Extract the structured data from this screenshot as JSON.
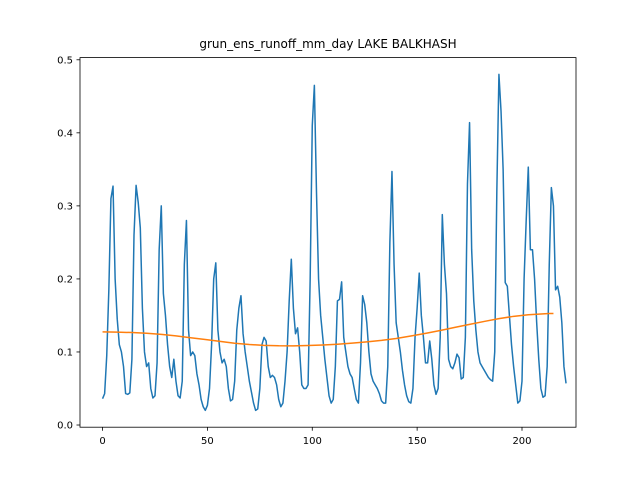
{
  "chart_data": {
    "type": "line",
    "title": "grun_ens_runoff_mm_day LAKE BALKHASH",
    "xlabel": "",
    "ylabel": "",
    "xlim": [
      -10.75,
      225.75
    ],
    "ylim": [
      -0.003,
      0.503
    ],
    "xticks": [
      0,
      50,
      100,
      150,
      200
    ],
    "xtick_labels": [
      "0",
      "50",
      "100",
      "150",
      "200"
    ],
    "yticks": [
      0.0,
      0.1,
      0.2,
      0.3,
      0.4,
      0.5
    ],
    "ytick_labels": [
      "0.0",
      "0.1",
      "0.2",
      "0.3",
      "0.4",
      "0.5"
    ],
    "grid": false,
    "colors": {
      "series1": "#1f77b4",
      "series2": "#ff7f0e"
    },
    "series": [
      {
        "values": [
          0.036,
          0.043,
          0.095,
          0.185,
          0.31,
          0.327,
          0.2,
          0.145,
          0.11,
          0.1,
          0.08,
          0.043,
          0.042,
          0.044,
          0.09,
          0.26,
          0.328,
          0.305,
          0.27,
          0.16,
          0.1,
          0.08,
          0.085,
          0.05,
          0.037,
          0.04,
          0.085,
          0.24,
          0.3,
          0.18,
          0.15,
          0.11,
          0.08,
          0.065,
          0.09,
          0.06,
          0.04,
          0.037,
          0.06,
          0.22,
          0.28,
          0.13,
          0.095,
          0.1,
          0.095,
          0.07,
          0.055,
          0.035,
          0.025,
          0.02,
          0.027,
          0.05,
          0.11,
          0.2,
          0.222,
          0.13,
          0.1,
          0.085,
          0.09,
          0.08,
          0.05,
          0.033,
          0.035,
          0.06,
          0.13,
          0.16,
          0.177,
          0.125,
          0.1,
          0.08,
          0.06,
          0.045,
          0.03,
          0.02,
          0.022,
          0.05,
          0.11,
          0.12,
          0.115,
          0.08,
          0.065,
          0.068,
          0.065,
          0.055,
          0.035,
          0.025,
          0.03,
          0.06,
          0.1,
          0.17,
          0.227,
          0.16,
          0.125,
          0.133,
          0.1,
          0.055,
          0.05,
          0.05,
          0.055,
          0.2,
          0.41,
          0.465,
          0.32,
          0.2,
          0.15,
          0.12,
          0.09,
          0.065,
          0.04,
          0.03,
          0.035,
          0.08,
          0.17,
          0.172,
          0.196,
          0.12,
          0.1,
          0.08,
          0.07,
          0.065,
          0.05,
          0.035,
          0.03,
          0.085,
          0.177,
          0.165,
          0.14,
          0.1,
          0.07,
          0.06,
          0.055,
          0.05,
          0.043,
          0.033,
          0.03,
          0.03,
          0.08,
          0.25,
          0.347,
          0.22,
          0.14,
          0.12,
          0.1,
          0.075,
          0.055,
          0.04,
          0.032,
          0.03,
          0.05,
          0.12,
          0.16,
          0.208,
          0.15,
          0.12,
          0.085,
          0.085,
          0.115,
          0.09,
          0.055,
          0.042,
          0.05,
          0.12,
          0.288,
          0.22,
          0.18,
          0.09,
          0.08,
          0.077,
          0.085,
          0.097,
          0.092,
          0.063,
          0.065,
          0.12,
          0.33,
          0.414,
          0.24,
          0.17,
          0.13,
          0.1,
          0.085,
          0.08,
          0.075,
          0.07,
          0.065,
          0.062,
          0.06,
          0.1,
          0.32,
          0.48,
          0.43,
          0.35,
          0.195,
          0.19,
          0.15,
          0.11,
          0.08,
          0.055,
          0.03,
          0.033,
          0.06,
          0.2,
          0.28,
          0.353,
          0.24,
          0.24,
          0.2,
          0.14,
          0.09,
          0.05,
          0.038,
          0.04,
          0.08,
          0.22,
          0.325,
          0.3,
          0.185,
          0.19,
          0.175,
          0.14,
          0.08,
          0.057
        ]
      },
      {
        "values": [
          0.1275,
          0.1271,
          0.1266,
          0.1256,
          0.124,
          0.122,
          0.1195,
          0.117,
          0.1145,
          0.112,
          0.1102,
          0.1091,
          0.1085,
          0.1084,
          0.1088,
          0.1095,
          0.1106,
          0.1121,
          0.1138,
          0.1159,
          0.1185,
          0.1218,
          0.1255,
          0.1294,
          0.1337,
          0.1378,
          0.1418,
          0.1456,
          0.1488,
          0.151,
          0.1522,
          0.1527,
          0.1527
        ],
        "x": [
          0,
          7,
          14,
          21,
          28,
          35,
          42,
          49,
          56,
          63,
          70,
          77,
          84,
          91,
          98,
          105,
          112,
          119,
          126,
          133,
          140,
          147,
          154,
          161,
          168,
          175,
          182,
          189,
          196,
          203,
          210,
          213,
          215
        ]
      }
    ]
  }
}
